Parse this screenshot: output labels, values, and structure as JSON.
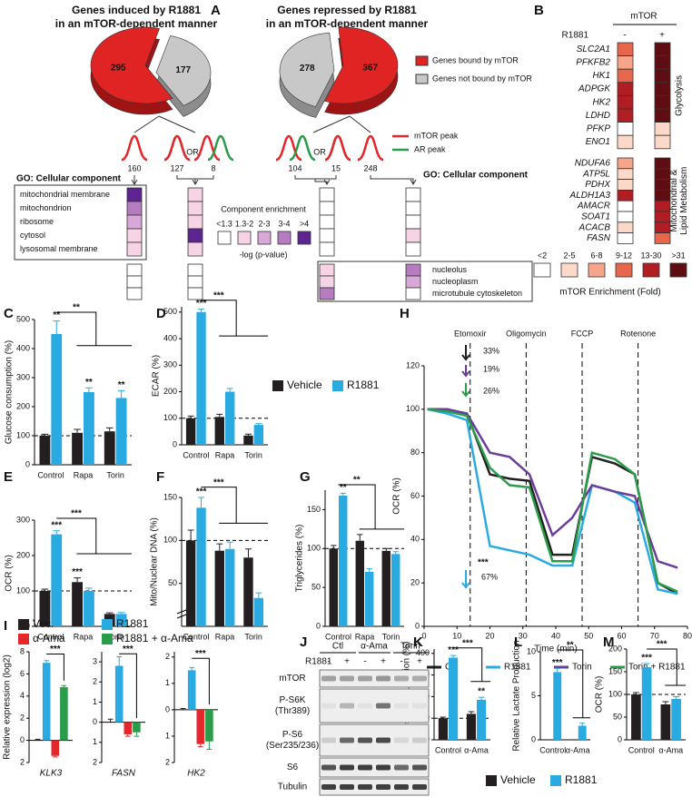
{
  "panel_labels": [
    "A",
    "B",
    "C",
    "D",
    "E",
    "F",
    "G",
    "H",
    "I",
    "J",
    "K",
    "L",
    "M"
  ],
  "panel_a": {
    "peak_legend": [
      "mTOR peak",
      "AR peak"
    ],
    "or_labels": [
      "OR",
      "OR"
    ],
    "counts": [
      160,
      127,
      8,
      104,
      15,
      248
    ],
    "go_headings": [
      "GO: Cellular component",
      "GO: Cellular component"
    ],
    "terms": [
      "mitochondrial membrane",
      "mitochondrion",
      "ribosome",
      "cytosol",
      "lysosomal membrane",
      "nucleolus",
      "nucleoplasm",
      "microtubule cytoskeleton"
    ],
    "levels": [
      [
        4,
        3,
        2,
        1,
        1,
        0,
        0,
        0
      ],
      [
        1,
        1,
        1,
        4,
        1,
        0,
        0,
        0
      ],
      [
        0,
        0,
        0,
        0,
        0,
        1,
        1,
        3
      ],
      [
        0,
        0,
        0,
        1,
        0,
        3,
        2,
        0
      ]
    ],
    "enrichment_legend": {
      "title": "Component enrichment",
      "labels": [
        "<1.3",
        "1.3-2",
        "2-3",
        "3-4",
        ">4"
      ],
      "axis": "-log (p-value)",
      "colors": [
        "#ffffff",
        "#f6d3e5",
        "#d9a8d8",
        "#b67cc0",
        "#5e2590"
      ]
    }
  },
  "panel_b": {
    "header": "mTOR",
    "treatment": "R1881",
    "signs": [
      "-",
      "+"
    ],
    "groups": [
      {
        "name": [
          "Glycolysis"
        ],
        "genes": [
          "SLC2A1",
          "PFKFB2",
          "HK1",
          "ADPGK",
          "HK2",
          "LDHD",
          "PFKP",
          "ENO1"
        ],
        "levels": [
          [
            3,
            2,
            3,
            4,
            4,
            4,
            0,
            1
          ],
          [
            5,
            5,
            5,
            5,
            5,
            5,
            1,
            1
          ]
        ]
      },
      {
        "name": [
          "Mitochondrial &",
          "Lipid Metabolism"
        ],
        "genes": [
          "NDUFA6",
          "ATP5L",
          "PDHX",
          "ALDH1A3",
          "AMACR",
          "SOAT1",
          "ACACB",
          "FASN"
        ],
        "levels": [
          [
            2,
            1,
            1,
            4,
            0,
            0,
            1,
            0
          ],
          [
            5,
            5,
            5,
            5,
            4,
            4,
            4,
            3
          ]
        ]
      }
    ],
    "legend": {
      "title": "mTOR Enrichment (Fold)",
      "labels": [
        "<2",
        "2-5",
        "6-8",
        "9-12",
        "13-30",
        ">31"
      ],
      "colors": [
        "#ffffff",
        "#fbd8c8",
        "#f7a58a",
        "#e8664c",
        "#b01e23",
        "#5e0e12"
      ]
    }
  },
  "panel_j": {
    "columns": [
      "Ctl",
      "α-Ama",
      "Torin"
    ],
    "treatment": "R1881",
    "signs": [
      "-",
      "+",
      "-",
      "+",
      "-",
      "+"
    ],
    "rows": [
      [
        "mTOR"
      ],
      [
        "P-S6K",
        "(Thr389)"
      ],
      [
        "P-S6",
        "(Ser235/236)"
      ],
      [
        "S6"
      ],
      [
        "Tubulin"
      ]
    ]
  },
  "chart_data": [
    {
      "type": "bar",
      "ylabel": "Glucose consumption (%)",
      "categories": [
        "Control",
        "Rapa",
        "Torin"
      ],
      "series": [
        {
          "name": "Vehicle",
          "color": "#231f20",
          "values": [
            100,
            110,
            115
          ],
          "errors": [
            5,
            12,
            12
          ]
        },
        {
          "name": "R1881",
          "color": "#29abe2",
          "values": [
            450,
            250,
            230
          ],
          "errors": [
            45,
            15,
            25
          ]
        }
      ],
      "ylim": [
        0,
        500
      ],
      "yticks": [
        0,
        100,
        200,
        300,
        400,
        500
      ],
      "reference_line": 100,
      "annotations": [
        "**",
        "**",
        "**",
        "**"
      ]
    },
    {
      "type": "bar",
      "ylabel": "ECAR (%)",
      "categories": [
        "Control",
        "Rapa",
        "Torin"
      ],
      "series": [
        {
          "color": "#231f20",
          "values": [
            100,
            105,
            35
          ],
          "errors": [
            8,
            10,
            5
          ]
        },
        {
          "color": "#29abe2",
          "values": [
            500,
            200,
            75
          ],
          "errors": [
            12,
            12,
            5
          ]
        }
      ],
      "ylim": [
        0,
        520
      ],
      "yticks": [
        0,
        100,
        200,
        300,
        400,
        500
      ],
      "reference_line": 100,
      "annotations": [
        "***",
        "***"
      ]
    },
    {
      "type": "bar",
      "ylabel": "OCR (%)",
      "categories": [
        "Control",
        "Rapa",
        "Torin"
      ],
      "series": [
        {
          "color": "#231f20",
          "values": [
            100,
            125,
            35
          ],
          "errors": [
            5,
            12,
            3
          ]
        },
        {
          "color": "#29abe2",
          "values": [
            260,
            100,
            35
          ],
          "errors": [
            10,
            8,
            4
          ]
        }
      ],
      "ylim": [
        0,
        300
      ],
      "yticks": [
        0,
        100,
        200,
        300
      ],
      "reference_line": 100,
      "annotations": [
        "***",
        "***",
        "***"
      ]
    },
    {
      "type": "bar",
      "ylabel": "Mito/Nuclear DNA (%)",
      "categories": [
        "Control",
        "Rapa",
        "Torin"
      ],
      "series": [
        {
          "color": "#231f20",
          "values": [
            100,
            88,
            80
          ],
          "errors": [
            12,
            8,
            10
          ]
        },
        {
          "color": "#29abe2",
          "values": [
            138,
            90,
            33
          ],
          "errors": [
            12,
            8,
            6
          ]
        }
      ],
      "ylim": [
        0,
        150
      ],
      "yticks": [
        50,
        100,
        150
      ],
      "reference_line": 100,
      "annotations": [
        "***",
        "***"
      ]
    },
    {
      "type": "bar",
      "ylabel": "Triglycerides (%)",
      "categories": [
        "Control",
        "Rapa",
        "Torin"
      ],
      "series": [
        {
          "color": "#231f20",
          "values": [
            100,
            110,
            97
          ],
          "errors": [
            4,
            8,
            3
          ]
        },
        {
          "color": "#29abe2",
          "values": [
            168,
            70,
            93
          ],
          "errors": [
            3,
            4,
            3
          ]
        }
      ],
      "ylim": [
        0,
        175
      ],
      "yticks": [
        0,
        50,
        100,
        150
      ],
      "reference_line": 100,
      "annotations": [
        "**",
        "**"
      ]
    },
    {
      "type": "line",
      "xlabel": "Time (min)",
      "ylabel": "OCR (%)",
      "x": [
        1,
        7,
        13,
        20,
        26,
        32,
        39,
        45,
        51,
        58,
        64,
        71,
        77
      ],
      "series": [
        {
          "name": "Ctl",
          "color": "#231f20",
          "values": [
            100,
            100,
            98,
            70,
            68,
            67,
            33,
            33,
            78,
            75,
            70,
            20,
            15
          ]
        },
        {
          "name": "R1881",
          "color": "#29abe2",
          "values": [
            100,
            98,
            95,
            37,
            35,
            33,
            28,
            28,
            65,
            62,
            57,
            17,
            15
          ]
        },
        {
          "name": "Torin",
          "color": "#6a3d9a",
          "values": [
            100,
            100,
            98,
            80,
            78,
            70,
            42,
            50,
            65,
            62,
            60,
            30,
            27
          ]
        },
        {
          "name": "Torin + R1881",
          "color": "#2a9c4a",
          "values": [
            100,
            99,
            97,
            73,
            65,
            64,
            30,
            30,
            80,
            77,
            70,
            20,
            16
          ]
        }
      ],
      "xlim": [
        0,
        80
      ],
      "xticks": [
        0,
        10,
        20,
        30,
        40,
        50,
        60,
        70,
        80
      ],
      "ylim": [
        0,
        120
      ],
      "yticks": [
        0,
        20,
        40,
        60,
        80,
        100,
        120
      ],
      "events": [
        {
          "label": "Etomoxir",
          "x": 14
        },
        {
          "label": "Oligomycin",
          "x": 31
        },
        {
          "label": "FCCP",
          "x": 48
        },
        {
          "label": "Rotenone",
          "x": 65
        }
      ],
      "annotations": [
        "33%",
        "19%",
        "26%",
        "***",
        "67%"
      ]
    },
    {
      "type": "bar",
      "ylabel": "Relative expression (log2)",
      "categories": [
        "KLK3"
      ],
      "series": [
        {
          "name": "Vec.",
          "color": "#231f20",
          "values": [
            0
          ],
          "errors": [
            0.1
          ]
        },
        {
          "name": "R1881",
          "color": "#29abe2",
          "values": [
            7.0
          ],
          "errors": [
            0.2
          ]
        },
        {
          "name": "α-Ama",
          "color": "#e5262b",
          "values": [
            -1.4
          ],
          "errors": [
            0.1
          ]
        },
        {
          "name": "R1881 + α-Ama",
          "color": "#2a9c4a",
          "values": [
            4.8
          ],
          "errors": [
            0.15
          ]
        }
      ],
      "ylim": [
        -2,
        8
      ],
      "yticks": [
        {
          "value": -2,
          "label": "2"
        },
        0,
        2,
        4,
        6,
        8
      ],
      "annotations": [
        "***"
      ]
    },
    {
      "type": "bar",
      "categories": [
        "FASN"
      ],
      "series": [
        {
          "color": "#231f20",
          "values": [
            0
          ],
          "errors": [
            0.15
          ]
        },
        {
          "color": "#29abe2",
          "values": [
            2.8
          ],
          "errors": [
            0.45
          ]
        },
        {
          "color": "#e5262b",
          "values": [
            -0.6
          ],
          "errors": [
            0.1
          ]
        },
        {
          "color": "#2a9c4a",
          "values": [
            -0.5
          ],
          "errors": [
            0.2
          ]
        }
      ],
      "ylim": [
        -2,
        3.5
      ],
      "yticks": [
        {
          "value": -2,
          "label": "2"
        },
        {
          "value": -1,
          "label": "1"
        },
        0,
        1,
        2,
        3
      ],
      "annotations": [
        "***"
      ]
    },
    {
      "type": "bar",
      "categories": [
        "HK2"
      ],
      "series": [
        {
          "color": "#231f20",
          "values": [
            0
          ],
          "errors": [
            0.05
          ]
        },
        {
          "color": "#29abe2",
          "values": [
            1.5
          ],
          "errors": [
            0.1
          ]
        },
        {
          "color": "#e5262b",
          "values": [
            -1.3
          ],
          "errors": [
            0.1
          ]
        },
        {
          "color": "#2a9c4a",
          "values": [
            -1.2
          ],
          "errors": [
            0.3
          ]
        }
      ],
      "ylim": [
        -2,
        2.2
      ],
      "yticks": [
        {
          "value": -2,
          "label": "2"
        },
        {
          "value": -1,
          "label": "1"
        },
        0,
        1,
        2
      ],
      "annotations": [
        "***"
      ]
    },
    {
      "type": "bar",
      "ylabel": "Glucose Consumption (%)",
      "categories": [
        "Control",
        "α-Ama"
      ],
      "series": [
        {
          "name": "Vehicle",
          "color": "#231f20",
          "values": [
            100,
            120
          ],
          "errors": [
            5,
            10
          ]
        },
        {
          "name": "R1881",
          "color": "#29abe2",
          "values": [
            380,
            185
          ],
          "errors": [
            10,
            12
          ]
        }
      ],
      "ylim": [
        0,
        420
      ],
      "yticks": [
        0,
        100,
        200,
        300,
        400
      ],
      "reference_line": 100,
      "annotations": [
        "***",
        "**",
        "***"
      ]
    },
    {
      "type": "bar",
      "ylabel": "Relative Lactate Production",
      "categories": [
        "Control",
        "α-Ama"
      ],
      "series": [
        {
          "color": "#29abe2",
          "values": [
            7.7,
            1.6
          ],
          "errors": [
            0.4,
            0.3
          ]
        }
      ],
      "ylim": [
        0,
        10
      ],
      "yticks": [
        0,
        5,
        10
      ],
      "annotations": [
        "***",
        "**"
      ]
    },
    {
      "type": "bar",
      "ylabel": "OCR (%)",
      "categories": [
        "Control",
        "α-Ama"
      ],
      "series": [
        {
          "color": "#231f20",
          "values": [
            100,
            78
          ],
          "errors": [
            4,
            6
          ]
        },
        {
          "color": "#29abe2",
          "values": [
            160,
            90
          ],
          "errors": [
            8,
            5
          ]
        }
      ],
      "ylim": [
        0,
        200
      ],
      "yticks": [
        0,
        50,
        100,
        150,
        200
      ],
      "reference_line": 100,
      "annotations": [
        "***",
        "***"
      ]
    },
    {
      "type": "pie",
      "title": [
        "Genes induced by R1881",
        "in an mTOR-dependent manner"
      ],
      "categories": [
        "Genes bound by mTOR",
        "Genes not bound by mTOR"
      ],
      "values": [
        295,
        177
      ],
      "colors": [
        "#e02424",
        "#c8c8c8"
      ]
    },
    {
      "type": "pie",
      "title": [
        "Genes repressed by R1881",
        "in an mTOR-dependent manner"
      ],
      "values": [
        367,
        278
      ],
      "colors": [
        "#e02424",
        "#c8c8c8"
      ]
    }
  ]
}
